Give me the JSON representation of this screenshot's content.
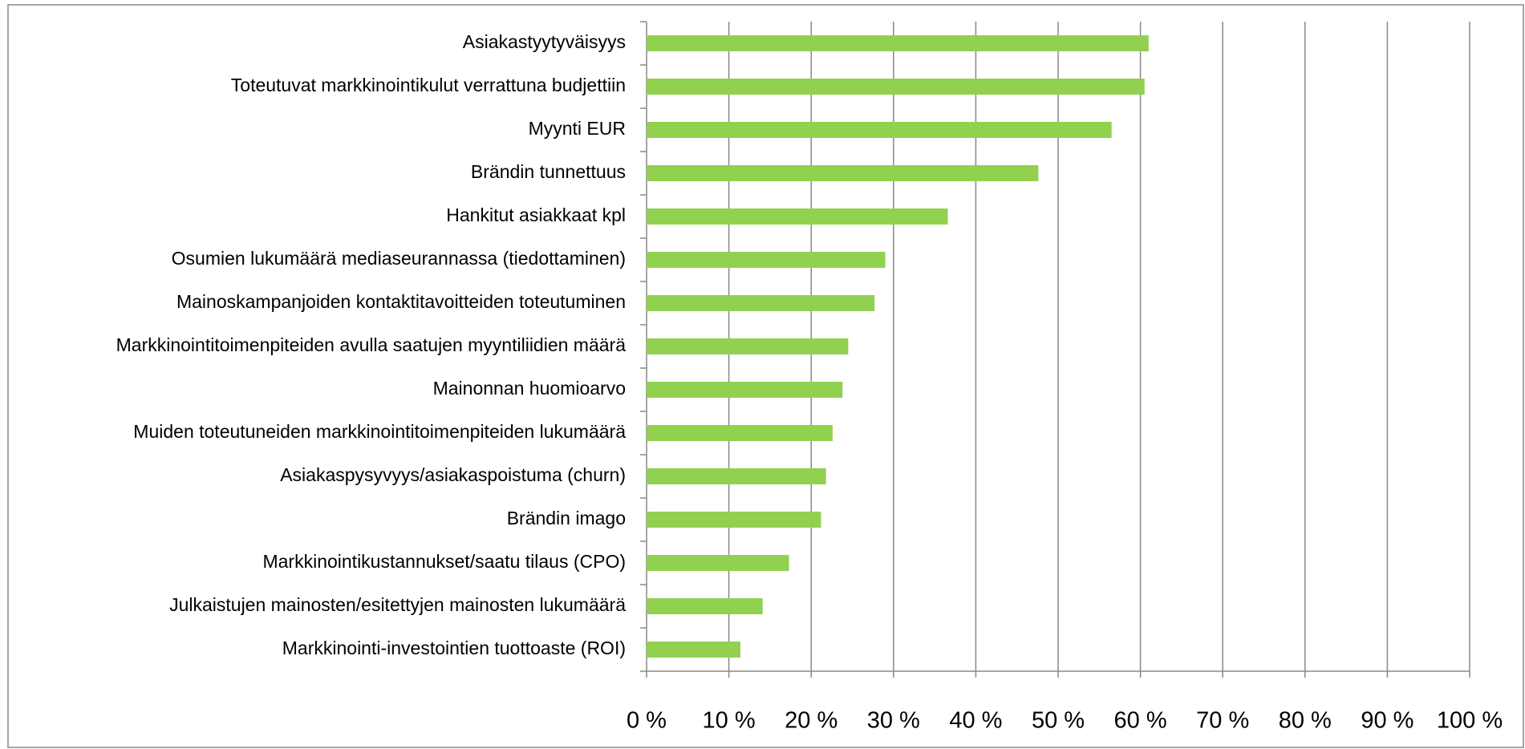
{
  "chart_data": {
    "type": "bar",
    "orientation": "horizontal",
    "categories": [
      "Asiakastyytyväisyys",
      "Toteutuvat markkinointikulut verrattuna budjettiin",
      "Myynti EUR",
      "Brändin tunnettuus",
      "Hankitut asiakkaat kpl",
      "Osumien lukumäärä mediaseurannassa (tiedottaminen)",
      "Mainoskampanjoiden kontaktitavoitteiden toteutuminen",
      "Markkinointitoimenpiteiden avulla saatujen myyntiliidien määrä",
      "Mainonnan huomioarvo",
      "Muiden toteutuneiden markkinointitoimenpiteiden lukumäärä",
      "Asiakaspysyvyys/asiakaspoistuma (churn)",
      "Brändin imago",
      "Markkinointikustannukset/saatu tilaus (CPO)",
      "Julkaistujen mainosten/esitettyjen mainosten lukumäärä",
      "Markkinointi-investointien tuottoaste (ROI)"
    ],
    "values": [
      61,
      60.5,
      56.5,
      47.6,
      36.6,
      29,
      27.7,
      24.5,
      23.8,
      22.6,
      21.8,
      21.2,
      17.3,
      14.1,
      11.4
    ],
    "color": "#92d050",
    "xlim": [
      0,
      100
    ],
    "xticks": [
      {
        "value": 0,
        "label": "0 %"
      },
      {
        "value": 10,
        "label": "10 %"
      },
      {
        "value": 20,
        "label": "20 %"
      },
      {
        "value": 30,
        "label": "30 %"
      },
      {
        "value": 40,
        "label": "40 %"
      },
      {
        "value": 50,
        "label": "50 %"
      },
      {
        "value": 60,
        "label": "60 %"
      },
      {
        "value": 70,
        "label": "70 %"
      },
      {
        "value": 80,
        "label": "80 %"
      },
      {
        "value": 90,
        "label": "90 %"
      },
      {
        "value": 100,
        "label": "100 %"
      }
    ],
    "grid": true
  }
}
